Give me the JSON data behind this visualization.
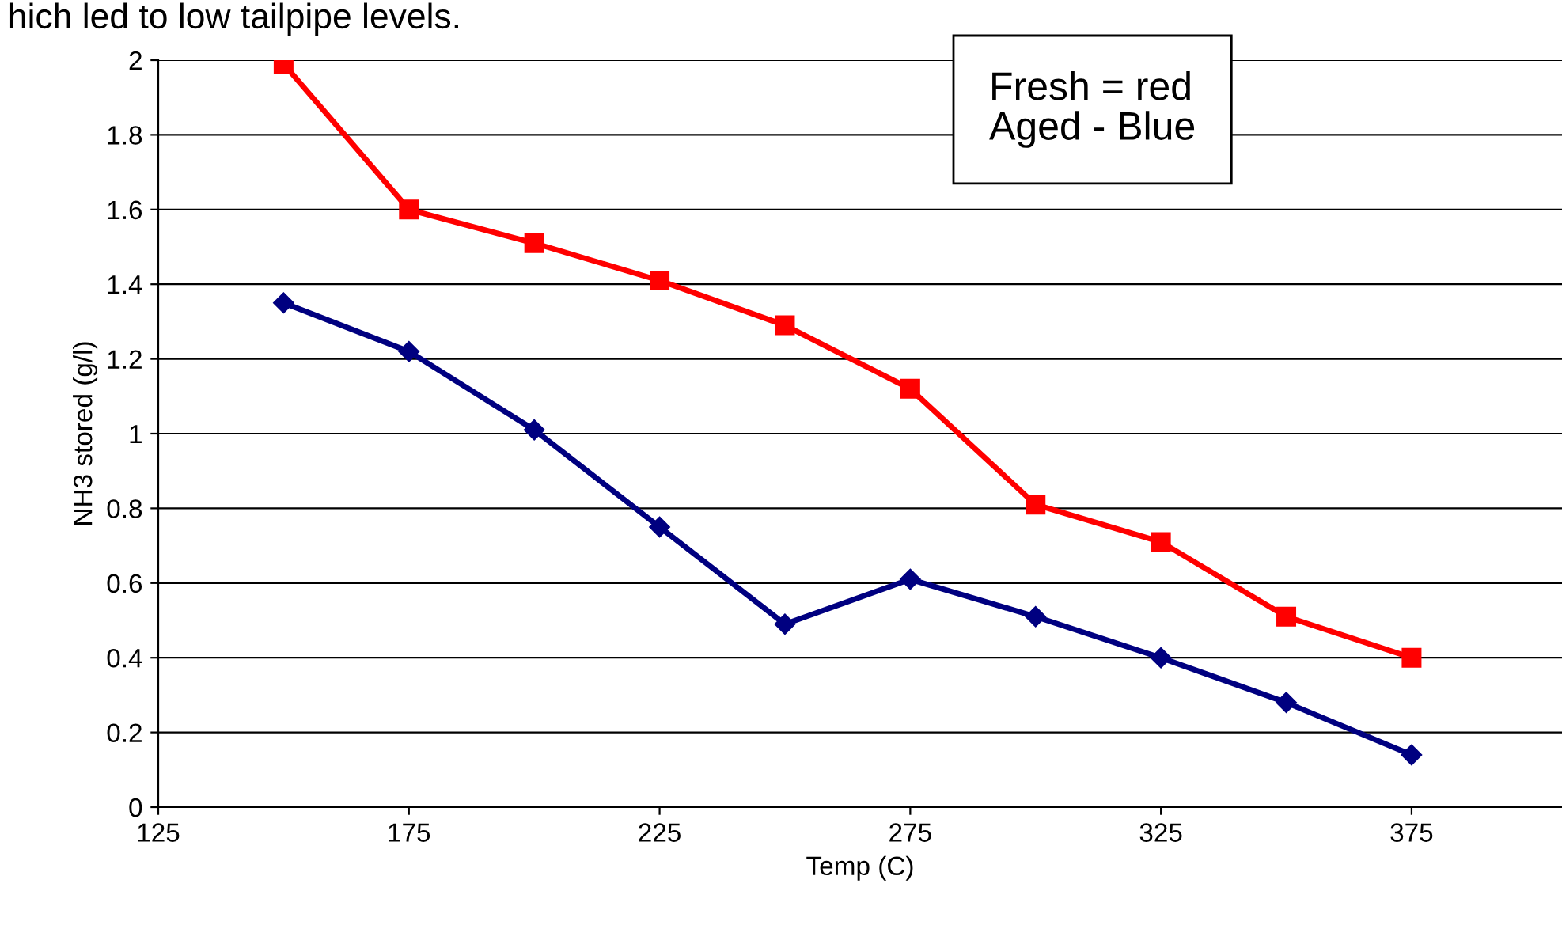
{
  "chart_data": {
    "type": "line",
    "xlabel": "Temp (C)",
    "ylabel": "NH3 stored (g/l)",
    "x": [
      150,
      175,
      200,
      225,
      250,
      275,
      300,
      325,
      350,
      375
    ],
    "series": [
      {
        "color": "#ff0000",
        "marker": "square",
        "values": [
          1.99,
          1.6,
          1.51,
          1.41,
          1.29,
          1.12,
          0.81,
          0.71,
          0.51,
          0.4
        ]
      },
      {
        "color": "#000080",
        "marker": "diamond",
        "values": [
          1.35,
          1.22,
          1.01,
          0.75,
          0.49,
          0.61,
          0.51,
          0.4,
          0.28,
          0.14
        ]
      }
    ],
    "xlim": [
      125,
      405
    ],
    "xticks": [
      125,
      175,
      225,
      275,
      325,
      375
    ],
    "ylim": [
      0,
      2
    ],
    "yticks": [
      0,
      0.2,
      0.4,
      0.6,
      0.8,
      1,
      1.2,
      1.4,
      1.6,
      1.8,
      2
    ],
    "grid": "y",
    "legend": false,
    "line_style": "solid",
    "annotations": [
      "hich led to low tailpipe levels.",
      "Fresh = red\nAged - Blue"
    ]
  }
}
